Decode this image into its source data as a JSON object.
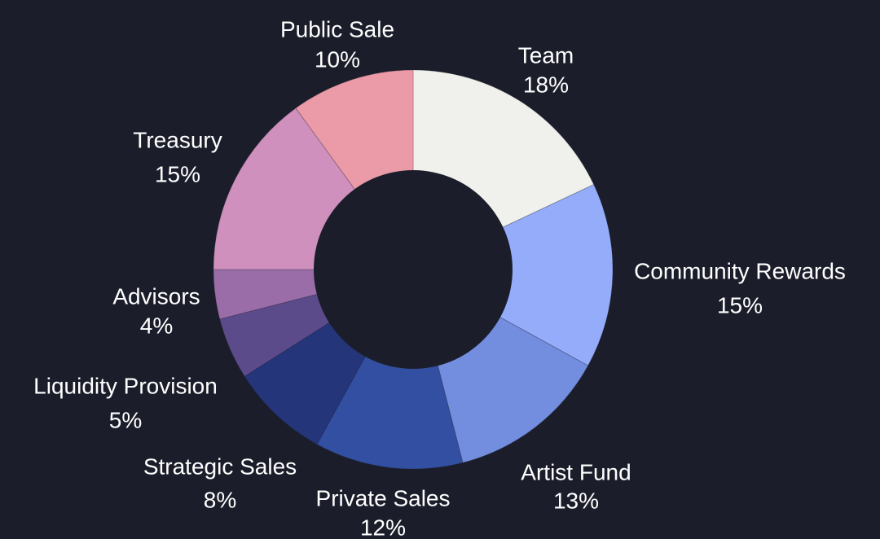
{
  "chart_data": {
    "type": "donut",
    "title": "",
    "background": "#1b1e2a",
    "slices": [
      {
        "label": "Team",
        "percent_label": "18%",
        "value": 18,
        "color": "#f0f0ec"
      },
      {
        "label": "Community Rewards",
        "percent_label": "15%",
        "value": 15,
        "color": "#95acfa"
      },
      {
        "label": "Artist Fund",
        "percent_label": "13%",
        "value": 13,
        "color": "#738ddf"
      },
      {
        "label": "Private Sales",
        "percent_label": "12%",
        "value": 12,
        "color": "#334fa1"
      },
      {
        "label": "Strategic Sales",
        "percent_label": "8%",
        "value": 8,
        "color": "#24357a"
      },
      {
        "label": "Liquidity Provision",
        "percent_label": "5%",
        "value": 5,
        "color": "#5b4b8a"
      },
      {
        "label": "Advisors",
        "percent_label": "4%",
        "value": 4,
        "color": "#9a6da8"
      },
      {
        "label": "Treasury",
        "percent_label": "15%",
        "value": 15,
        "color": "#cf90bd"
      },
      {
        "label": "Public Sale",
        "percent_label": "10%",
        "value": 10,
        "color": "#eb9aa7"
      }
    ]
  }
}
